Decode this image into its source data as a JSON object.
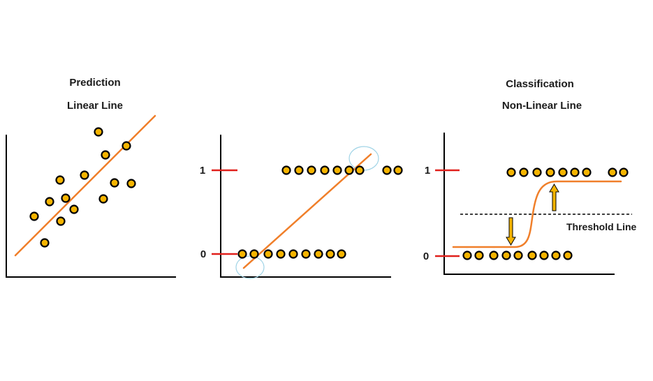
{
  "colors": {
    "axis": "#000000",
    "tick": "#e0201c",
    "line": "#f07f2a",
    "dot_fill": "#f5b400",
    "dot_stroke": "#000000",
    "highlight_circle": "#9fd3e6",
    "arrow_fill": "#f5b400"
  },
  "panel_prediction": {
    "title": "Prediction",
    "subtitle": "Linear Line",
    "icons": [
      "scatter-dot",
      "regression-line"
    ]
  },
  "panel_middle": {
    "tick_one": "1",
    "tick_zero": "0",
    "icons": [
      "binary-dot",
      "linear-fit-line",
      "highlight-circle"
    ]
  },
  "panel_classification": {
    "title": "Classification",
    "subtitle": "Non-Linear Line",
    "tick_one": "1",
    "tick_zero": "0",
    "threshold_label": "Threshold Line",
    "icons": [
      "binary-dot",
      "sigmoid-curve",
      "threshold-line",
      "up-arrow",
      "down-arrow"
    ]
  }
}
